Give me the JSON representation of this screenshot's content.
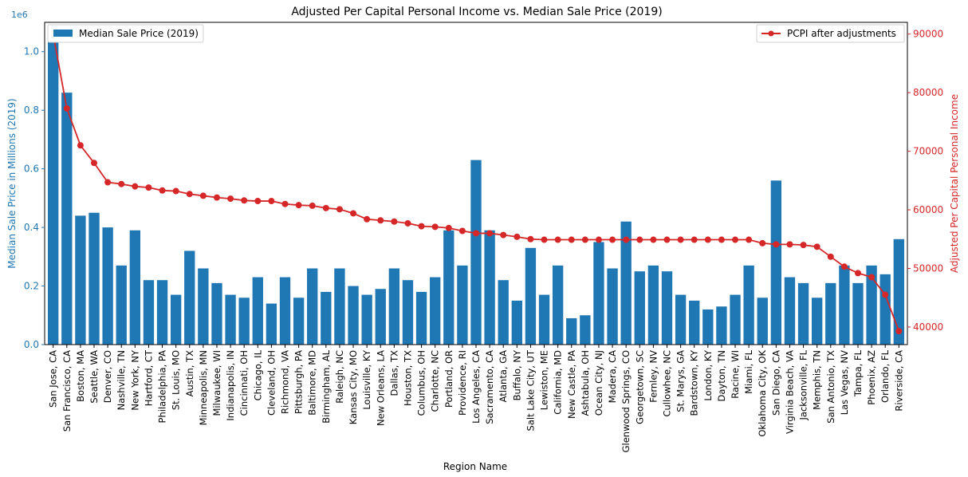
{
  "chart_data": {
    "type": "bar",
    "title": "Adjusted Per Capital Personal Income vs. Median Sale Price (2019)",
    "xlabel": "Region Name",
    "ylabel_left": "Median Sale Price in Millions (2019)",
    "ylabel_right": "Adjusted Per Capital Personal Income",
    "left_axis_offset_text": "1e6",
    "ylim_left": [
      0,
      1.1
    ],
    "ylim_right": [
      37000,
      92000
    ],
    "left_ticks": [
      "0.0",
      "0.2",
      "0.4",
      "0.6",
      "0.8",
      "1.0"
    ],
    "right_ticks": [
      "40000",
      "50000",
      "60000",
      "70000",
      "80000",
      "90000"
    ],
    "grid": false,
    "colors": {
      "bar": "#1f77b4",
      "line": "#d62728",
      "left_axis": "#1f77b4",
      "right_axis": "#d62728"
    },
    "legend_bar": {
      "label": "Median Sale Price (2019)",
      "position": "upper-left"
    },
    "legend_line": {
      "label": "PCPI after adjustments",
      "position": "upper-right"
    },
    "categories": [
      "San Jose, CA",
      "San Francisco, CA",
      "Boston, MA",
      "Seattle, WA",
      "Denver, CO",
      "Nashville, TN",
      "New York, NY",
      "Hartford, CT",
      "Philadelphia, PA",
      "St. Louis, MO",
      "Austin, TX",
      "Minneapolis, MN",
      "Milwaukee, WI",
      "Indianapolis, IN",
      "Cincinnati, OH",
      "Chicago, IL",
      "Cleveland, OH",
      "Richmond, VA",
      "Pittsburgh, PA",
      "Baltimore, MD",
      "Birmingham, AL",
      "Raleigh, NC",
      "Kansas City, MO",
      "Louisville, KY",
      "New Orleans, LA",
      "Dallas, TX",
      "Houston, TX",
      "Columbus, OH",
      "Charlotte, NC",
      "Portland, OR",
      "Providence, RI",
      "Los Angeles, CA",
      "Sacramento, CA",
      "Atlanta, GA",
      "Buffalo, NY",
      "Salt Lake City, UT",
      "Lewiston, ME",
      "California, MD",
      "New Castle, PA",
      "Ashtabula, OH",
      "Ocean City, NJ",
      "Madera, CA",
      "Glenwood Springs, CO",
      "Georgetown, SC",
      "Fernley, NV",
      "Cullowhee, NC",
      "St. Marys, GA",
      "Bardstown, KY",
      "London, KY",
      "Dayton, TN",
      "Racine, WI",
      "Miami, FL",
      "Oklahoma City, OK",
      "San Diego, CA",
      "Virginia Beach, VA",
      "Jacksonville, FL",
      "Memphis, TN",
      "San Antonio, TX",
      "Las Vegas, NV",
      "Tampa, FL",
      "Phoenix, AZ",
      "Orlando, FL",
      "Riverside, CA"
    ],
    "series": [
      {
        "name": "Median Sale Price (2019)",
        "type": "bar",
        "axis": "left",
        "values": [
          1.05,
          0.86,
          0.44,
          0.45,
          0.4,
          0.27,
          0.39,
          0.22,
          0.22,
          0.17,
          0.32,
          0.26,
          0.21,
          0.17,
          0.16,
          0.23,
          0.14,
          0.23,
          0.16,
          0.26,
          0.18,
          0.26,
          0.2,
          0.17,
          0.19,
          0.26,
          0.22,
          0.18,
          0.23,
          0.39,
          0.27,
          0.63,
          0.39,
          0.22,
          0.15,
          0.33,
          0.17,
          0.27,
          0.09,
          0.1,
          0.35,
          0.26,
          0.42,
          0.25,
          0.27,
          0.25,
          0.17,
          0.15,
          0.12,
          0.13,
          0.17,
          0.27,
          0.16,
          0.56,
          0.23,
          0.21,
          0.16,
          0.21,
          0.27,
          0.21,
          0.27,
          0.24,
          0.36
        ]
      },
      {
        "name": "PCPI after adjustments",
        "type": "line",
        "axis": "right",
        "values": [
          90000,
          77300,
          71000,
          68000,
          64700,
          64400,
          64000,
          63800,
          63300,
          63200,
          62700,
          62400,
          62100,
          61900,
          61600,
          61500,
          61500,
          61000,
          60800,
          60700,
          60300,
          60100,
          59400,
          58400,
          58200,
          58000,
          57700,
          57200,
          57100,
          56900,
          56400,
          56000,
          56000,
          55700,
          55400,
          55000,
          54900,
          54900,
          54900,
          54900,
          54900,
          54900,
          54900,
          54900,
          54900,
          54900,
          54900,
          54900,
          54900,
          54900,
          54900,
          54900,
          54300,
          54100,
          54100,
          54000,
          53700,
          52000,
          50300,
          49200,
          48500,
          45500,
          39300
        ]
      }
    ]
  }
}
